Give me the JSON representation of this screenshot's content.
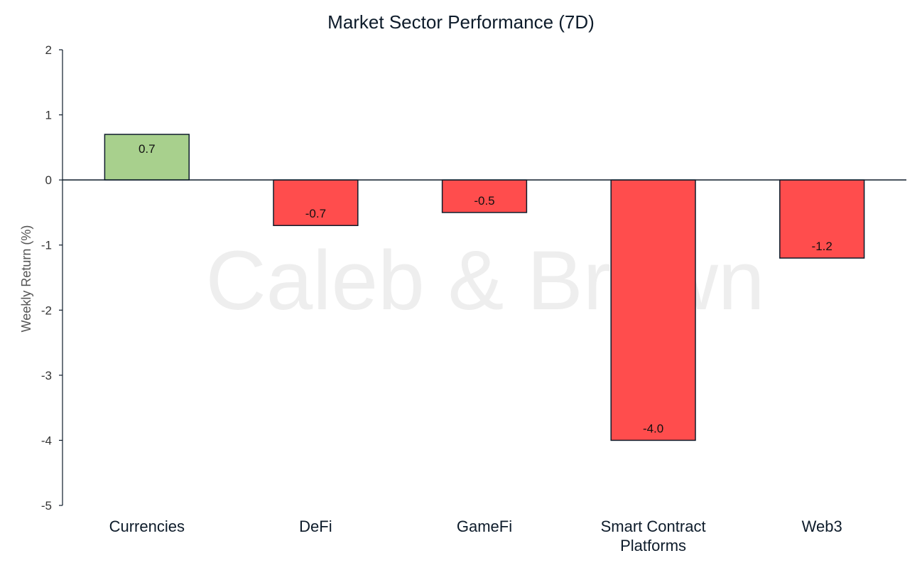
{
  "chart_data": {
    "type": "bar",
    "title": "Market Sector Performance (7D)",
    "xlabel": "",
    "ylabel": "Weekly  Return (%)",
    "categories": [
      "Currencies",
      "DeFi",
      "GameFi",
      "Smart Contract Platforms",
      "Web3"
    ],
    "category_label_lines": [
      [
        "Currencies"
      ],
      [
        "DeFi"
      ],
      [
        "GameFi"
      ],
      [
        "Smart Contract",
        "Platforms"
      ],
      [
        "Web3"
      ]
    ],
    "values": [
      0.7,
      -0.7,
      -0.5,
      -4.0,
      -1.2
    ],
    "data_labels": [
      "0.7",
      "-0.7",
      "-0.5",
      "-4.0",
      "-1.2"
    ],
    "ylim": [
      -5,
      2
    ],
    "yticks": [
      2,
      1,
      0,
      -1,
      -2,
      -3,
      -4,
      -5
    ],
    "grid": false,
    "legend": "none",
    "watermark": "Caleb & Brown",
    "colors": {
      "positive": "#a8d08d",
      "negative": "#ff4d4d",
      "bar_edge": "#0d1b2a",
      "axis": "#0d1b2a"
    }
  }
}
